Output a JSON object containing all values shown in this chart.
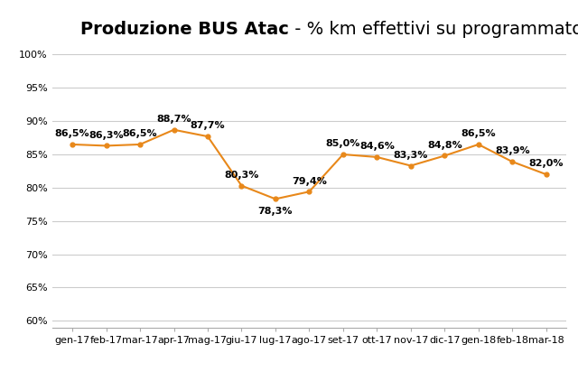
{
  "title_bold": "Produzione BUS Atac",
  "title_normal": " - % km effettivi su programmato",
  "categories": [
    "gen-17",
    "feb-17",
    "mar-17",
    "apr-17",
    "mag-17",
    "giu-17",
    "lug-17",
    "ago-17",
    "set-17",
    "ott-17",
    "nov-17",
    "dic-17",
    "gen-18",
    "feb-18",
    "mar-18"
  ],
  "values": [
    86.5,
    86.3,
    86.5,
    88.7,
    87.7,
    80.3,
    78.3,
    79.4,
    85.0,
    84.6,
    83.3,
    84.8,
    86.5,
    83.9,
    82.0
  ],
  "labels": [
    "86,5%",
    "86,3%",
    "86,5%",
    "88,7%",
    "87,7%",
    "80,3%",
    "78,3%",
    "79,4%",
    "85,0%",
    "84,6%",
    "83,3%",
    "84,8%",
    "86,5%",
    "83,9%",
    "82,0%"
  ],
  "label_offsets": [
    0.9,
    0.9,
    0.9,
    0.9,
    0.9,
    0.9,
    -1.2,
    0.9,
    0.9,
    0.9,
    0.9,
    0.9,
    0.9,
    0.9,
    0.9
  ],
  "line_color": "#E8881A",
  "marker_color": "#E8881A",
  "background_color": "#FFFFFF",
  "grid_color": "#CCCCCC",
  "ylim": [
    59,
    101.5
  ],
  "yticks": [
    60,
    65,
    70,
    75,
    80,
    85,
    90,
    95,
    100
  ],
  "title_fontsize": 14,
  "label_fontsize": 8,
  "tick_fontsize": 8
}
